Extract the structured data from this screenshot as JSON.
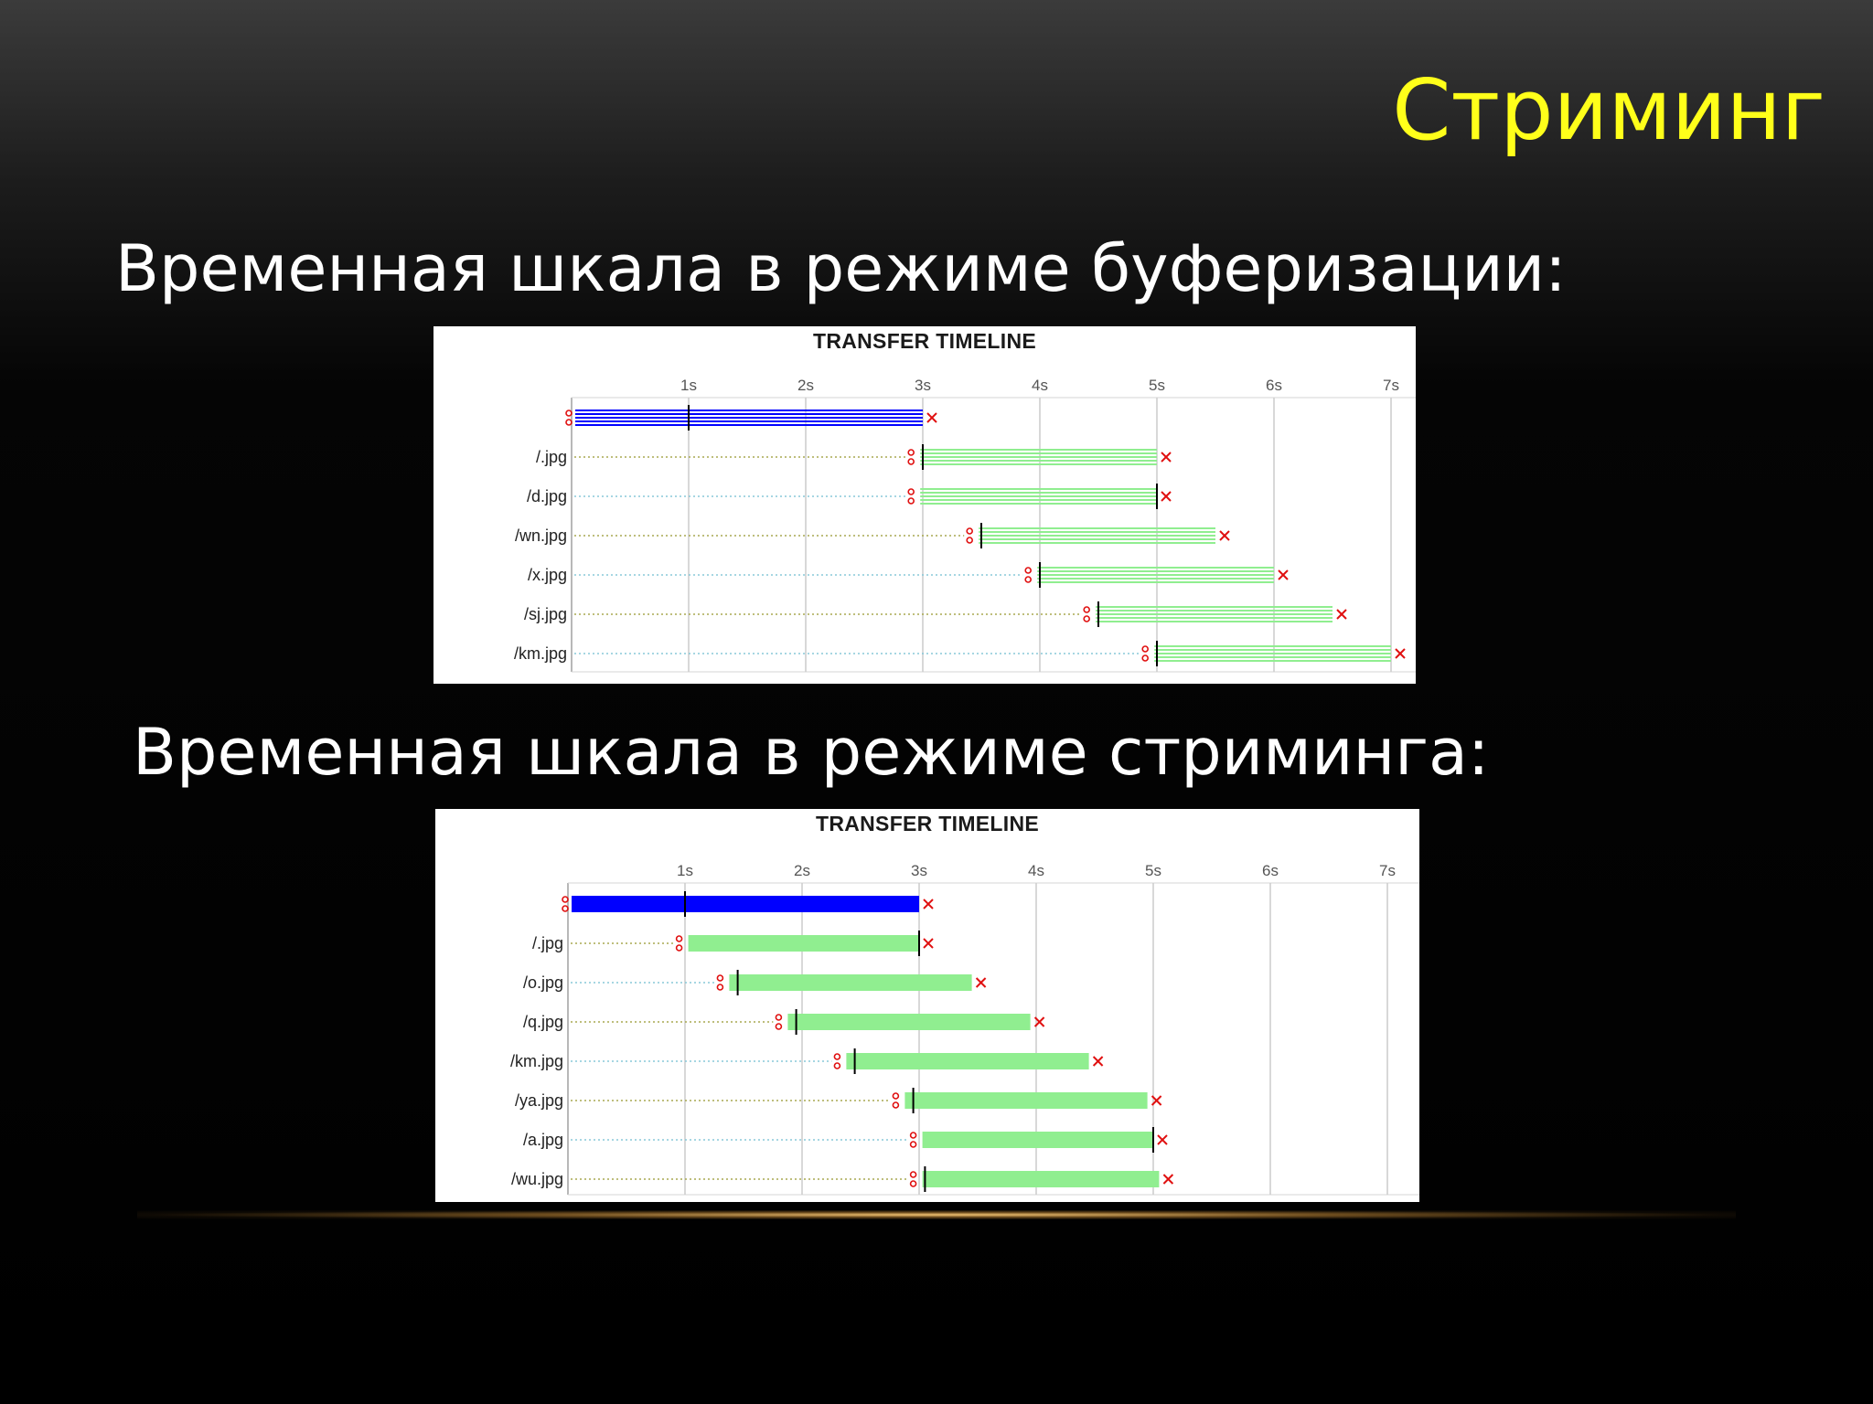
{
  "slide": {
    "title": "Стриминг",
    "caption_buffering": "Временная шкала в режиме буферизации:",
    "caption_streaming": "Временная шкала в режиме стриминга:"
  },
  "colors": {
    "background": "#000000",
    "title": "#ffff1a",
    "caption": "#ffffff",
    "html_bar": "#0000ff",
    "image_bar": "#90ee90",
    "end_marker": "#e01010",
    "start_marker": "#e01010"
  },
  "chart_data": [
    {
      "type": "bar",
      "title": "TRANSFER TIMELINE",
      "xlabel": "",
      "ylabel": "",
      "x_ticks": [
        "1s",
        "2s",
        "3s",
        "4s",
        "5s",
        "6s",
        "7s"
      ],
      "xlim": [
        0,
        7.2
      ],
      "grid": true,
      "bar_style": "striped",
      "rows": [
        {
          "label": "",
          "start": 0,
          "first_byte": 1.0,
          "end": 3.0,
          "color": "#0000ff"
        },
        {
          "label": "/.jpg",
          "start": 2.9,
          "first_byte": 3.0,
          "end": 5.0,
          "color": "#90ee90"
        },
        {
          "label": "/d.jpg",
          "start": 2.9,
          "first_byte": 5.0,
          "end": 5.0,
          "color": "#90ee90"
        },
        {
          "label": "/wn.jpg",
          "start": 3.4,
          "first_byte": 3.5,
          "end": 5.5,
          "color": "#90ee90"
        },
        {
          "label": "/x.jpg",
          "start": 3.9,
          "first_byte": 4.0,
          "end": 6.0,
          "color": "#90ee90"
        },
        {
          "label": "/sj.jpg",
          "start": 4.4,
          "first_byte": 4.5,
          "end": 6.5,
          "color": "#90ee90"
        },
        {
          "label": "/km.jpg",
          "start": 4.9,
          "first_byte": 5.0,
          "end": 7.0,
          "color": "#90ee90"
        }
      ]
    },
    {
      "type": "bar",
      "title": "TRANSFER TIMELINE",
      "xlabel": "",
      "ylabel": "",
      "x_ticks": [
        "1s",
        "2s",
        "3s",
        "4s",
        "5s",
        "6s",
        "7s"
      ],
      "xlim": [
        0,
        7.1
      ],
      "grid": true,
      "bar_style": "solid",
      "rows": [
        {
          "label": "",
          "start": 0,
          "first_byte": 1.0,
          "end": 3.0,
          "color": "#0000ff"
        },
        {
          "label": "/.jpg",
          "start": 0.95,
          "first_byte": 3.0,
          "end": 3.0,
          "color": "#90ee90"
        },
        {
          "label": "/o.jpg",
          "start": 1.3,
          "first_byte": 1.45,
          "end": 3.45,
          "color": "#90ee90"
        },
        {
          "label": "/q.jpg",
          "start": 1.8,
          "first_byte": 1.95,
          "end": 3.95,
          "color": "#90ee90"
        },
        {
          "label": "/km.jpg",
          "start": 2.3,
          "first_byte": 2.45,
          "end": 4.45,
          "color": "#90ee90"
        },
        {
          "label": "/ya.jpg",
          "start": 2.8,
          "first_byte": 2.95,
          "end": 4.95,
          "color": "#90ee90"
        },
        {
          "label": "/a.jpg",
          "start": 2.95,
          "first_byte": 5.0,
          "end": 5.0,
          "color": "#90ee90"
        },
        {
          "label": "/wu.jpg",
          "start": 2.95,
          "first_byte": 3.05,
          "end": 5.05,
          "color": "#90ee90"
        }
      ]
    }
  ]
}
